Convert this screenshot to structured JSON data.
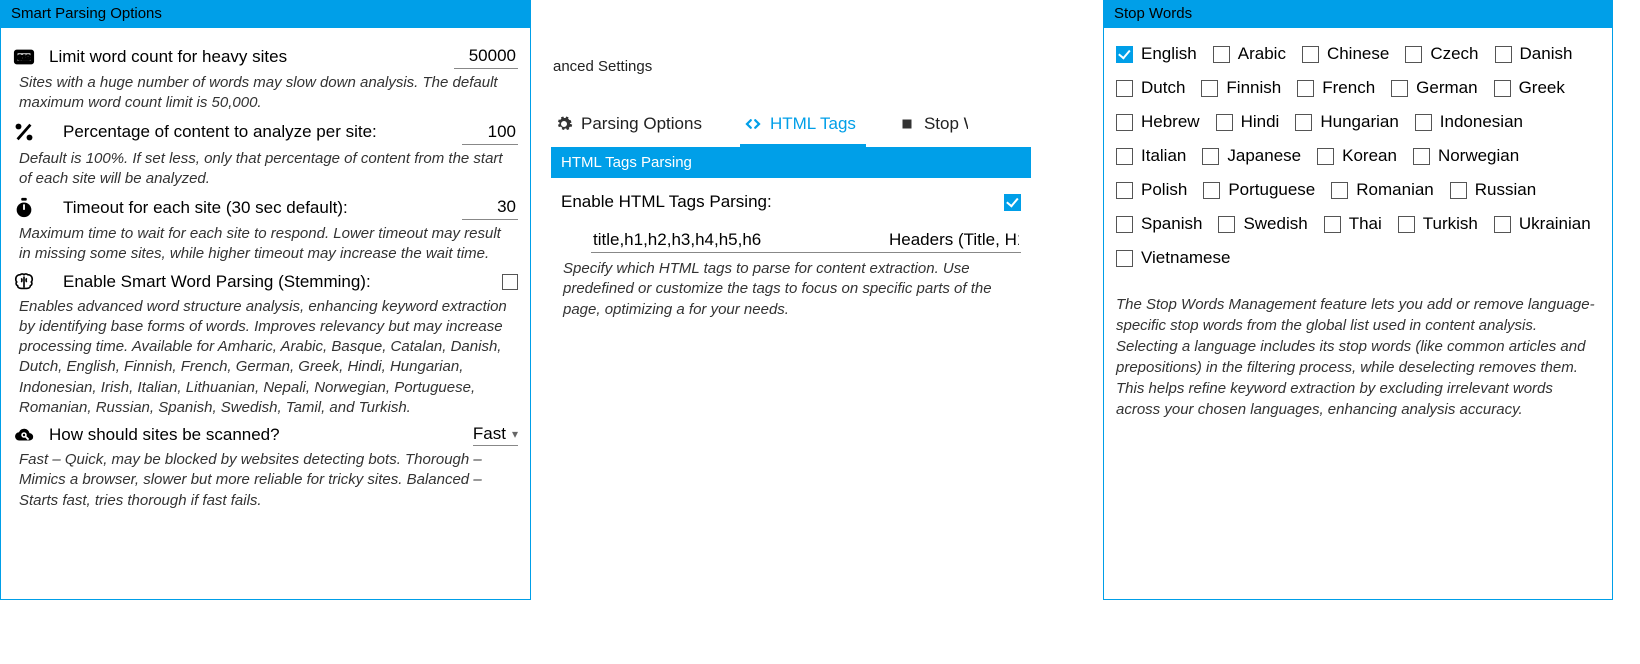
{
  "colors": {
    "accent": "#009fe8",
    "text": "#000000",
    "muted": "#333333",
    "border": "#888888"
  },
  "left": {
    "header": "Smart Parsing Options",
    "options": {
      "limit": {
        "label": "Limit word count for heavy sites",
        "value": "50000",
        "desc": "Sites with a huge number of words may slow down analysis. The default maximum word count limit is 50,000."
      },
      "percent": {
        "label": "Percentage of content to analyze per site:",
        "value": "100",
        "desc": "Default is 100%. If set less, only that percentage of content from the start of each site will be analyzed."
      },
      "timeout": {
        "label": "Timeout for each site (30 sec default):",
        "value": "30",
        "desc": "Maximum time to wait for each site to respond. Lower timeout may result in missing some sites, while higher timeout may increase the wait time."
      },
      "stemming": {
        "label": "Enable Smart Word Parsing (Stemming):",
        "checked": false,
        "desc": "Enables advanced word structure analysis, enhancing keyword extraction by identifying base forms of words. Improves relevancy but may increase processing time. Available for Amharic, Arabic, Basque, Catalan, Danish, Dutch, English, Finnish, French, German, Greek, Hindi, Hungarian, Indonesian, Irish, Italian, Lithuanian, Nepali, Norwegian, Portuguese, Romanian, Russian, Spanish, Swedish, Tamil, and Turkish."
      },
      "scan": {
        "label": "How should sites be scanned?",
        "value": "Fast",
        "desc": "Fast – Quick, may be blocked by websites detecting bots. Thorough – Mimics a browser, slower but more reliable for tricky sites. Balanced – Starts fast, tries thorough if fast fails."
      }
    }
  },
  "mid": {
    "title_trunc": "anced Settings",
    "tabs": {
      "parsing": "Parsing Options",
      "html": "HTML Tags",
      "stop_trunc": "Stop W"
    },
    "section": "HTML Tags Parsing",
    "enable_label": "Enable HTML Tags Parsing:",
    "enable_checked": true,
    "tags_value": "title,h1,h2,h3,h4,h5,h6",
    "tags_right_trunc": "Headers (Title, H1",
    "desc": "Specify which HTML tags to parse for content extraction. Use predefined or customize the tags to focus on specific parts of the page, optimizing a for your needs."
  },
  "right": {
    "header": "Stop Words",
    "languages": [
      {
        "name": "English",
        "checked": true
      },
      {
        "name": "Arabic",
        "checked": false
      },
      {
        "name": "Chinese",
        "checked": false
      },
      {
        "name": "Czech",
        "checked": false
      },
      {
        "name": "Danish",
        "checked": false
      },
      {
        "name": "Dutch",
        "checked": false
      },
      {
        "name": "Finnish",
        "checked": false
      },
      {
        "name": "French",
        "checked": false
      },
      {
        "name": "German",
        "checked": false
      },
      {
        "name": "Greek",
        "checked": false
      },
      {
        "name": "Hebrew",
        "checked": false
      },
      {
        "name": "Hindi",
        "checked": false
      },
      {
        "name": "Hungarian",
        "checked": false
      },
      {
        "name": "Indonesian",
        "checked": false
      },
      {
        "name": "Italian",
        "checked": false
      },
      {
        "name": "Japanese",
        "checked": false
      },
      {
        "name": "Korean",
        "checked": false
      },
      {
        "name": "Norwegian",
        "checked": false
      },
      {
        "name": "Polish",
        "checked": false
      },
      {
        "name": "Portuguese",
        "checked": false
      },
      {
        "name": "Romanian",
        "checked": false
      },
      {
        "name": "Russian",
        "checked": false
      },
      {
        "name": "Spanish",
        "checked": false
      },
      {
        "name": "Swedish",
        "checked": false
      },
      {
        "name": "Thai",
        "checked": false
      },
      {
        "name": "Turkish",
        "checked": false
      },
      {
        "name": "Ukrainian",
        "checked": false
      },
      {
        "name": "Vietnamese",
        "checked": false
      }
    ],
    "desc": "The Stop Words Management feature lets you add or remove language-specific stop words from the global list used in content analysis. Selecting a language includes its stop words (like common articles and prepositions) in the filtering process, while deselecting removes them. This helps refine keyword extraction by excluding irrelevant words across your chosen languages, enhancing analysis accuracy."
  }
}
